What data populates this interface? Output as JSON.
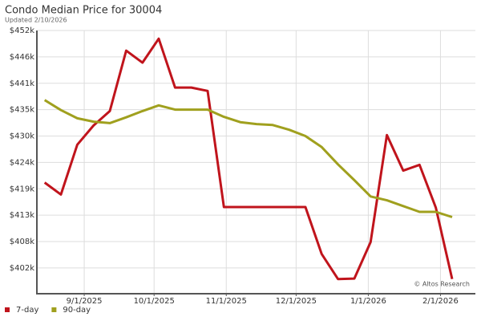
{
  "chart_data": {
    "type": "line",
    "title": "Condo Median Price for 30004",
    "subtitle": "Updated 2/10/2026",
    "annotation": "© Altos Research",
    "x": [
      "2025-08-15",
      "2025-08-22",
      "2025-08-29",
      "2025-09-05",
      "2025-09-12",
      "2025-09-19",
      "2025-09-26",
      "2025-10-03",
      "2025-10-10",
      "2025-10-17",
      "2025-10-24",
      "2025-10-31",
      "2025-11-07",
      "2025-11-14",
      "2025-11-21",
      "2025-11-28",
      "2025-12-05",
      "2025-12-12",
      "2025-12-19",
      "2025-12-26",
      "2026-01-02",
      "2026-01-09",
      "2026-01-16",
      "2026-01-23",
      "2026-01-30",
      "2026-02-06"
    ],
    "series": [
      {
        "name": "7-day",
        "color": "#c0141c",
        "values": [
          419800,
          417300,
          427700,
          431700,
          434700,
          447300,
          444800,
          449800,
          439600,
          439600,
          438900,
          414700,
          414700,
          414700,
          414700,
          414700,
          414700,
          404900,
          399700,
          399800,
          407400,
          429700,
          422300,
          423500,
          414600,
          399700
        ]
      },
      {
        "name": "90-day",
        "color": "#a0a01e",
        "values": [
          437000,
          434900,
          433200,
          432500,
          432200,
          433400,
          434700,
          435900,
          435000,
          435000,
          435000,
          433500,
          432400,
          432000,
          431800,
          430800,
          429500,
          427200,
          423600,
          420300,
          416900,
          416100,
          414900,
          413700,
          413700,
          412600
        ]
      }
    ],
    "xlim": [
      "2025-08-12",
      "2026-02-16"
    ],
    "xticks": [
      {
        "value": "2025-09-01",
        "label": "9/1/2025"
      },
      {
        "value": "2025-10-01",
        "label": "10/1/2025"
      },
      {
        "value": "2025-11-01",
        "label": "11/1/2025"
      },
      {
        "value": "2025-12-01",
        "label": "12/1/2025"
      },
      {
        "value": "2026-01-01",
        "label": "1/1/2026"
      },
      {
        "value": "2026-02-01",
        "label": "2/1/2026"
      }
    ],
    "ylim": [
      396800,
      451500
    ],
    "yticks": [
      {
        "value": 402000,
        "label": "$402k"
      },
      {
        "value": 407500,
        "label": "$408k"
      },
      {
        "value": 413000,
        "label": "$413k"
      },
      {
        "value": 418500,
        "label": "$419k"
      },
      {
        "value": 424000,
        "label": "$424k"
      },
      {
        "value": 429500,
        "label": "$430k"
      },
      {
        "value": 435000,
        "label": "$435k"
      },
      {
        "value": 440500,
        "label": "$441k"
      },
      {
        "value": 446000,
        "label": "$446k"
      },
      {
        "value": 451500,
        "label": "$452k"
      }
    ],
    "grid": true,
    "legend": "bottom-left"
  }
}
